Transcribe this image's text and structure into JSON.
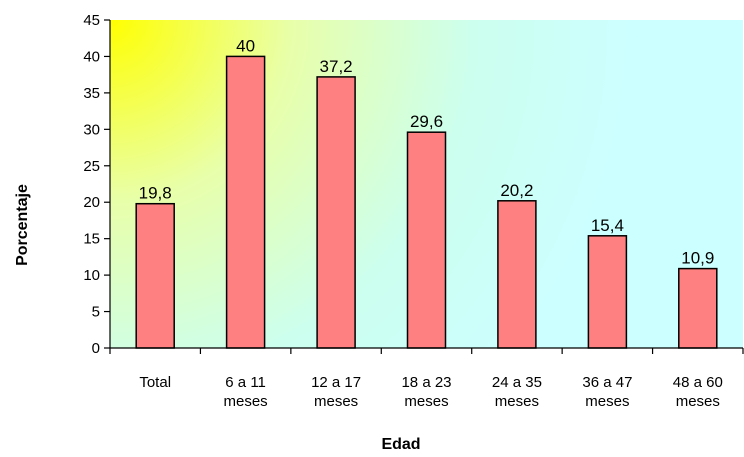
{
  "chart_data": {
    "type": "bar",
    "categories": [
      [
        "Total"
      ],
      [
        "6 a 11",
        "meses"
      ],
      [
        "12 a 17",
        "meses"
      ],
      [
        "18 a 23",
        "meses"
      ],
      [
        "24 a 35",
        "meses"
      ],
      [
        "36 a 47",
        "meses"
      ],
      [
        "48 a 60",
        "meses"
      ]
    ],
    "values": [
      19.8,
      40,
      37.2,
      29.6,
      20.2,
      15.4,
      10.9
    ],
    "data_labels": [
      "19,8",
      "40",
      "37,2",
      "29,6",
      "20,2",
      "15,4",
      "10,9"
    ],
    "xlabel": "Edad",
    "ylabel": "Porcentaje",
    "ylim": [
      0,
      45
    ],
    "yticks": [
      0,
      5,
      10,
      15,
      20,
      25,
      30,
      35,
      40,
      45
    ],
    "grid": false,
    "legend": "none",
    "colors": {
      "bar_fill": "#FF8080",
      "bar_stroke": "#000000",
      "plot_bg_top_left": "#FFFF00",
      "plot_bg_right": "#CCFFFF",
      "plot_bg_bottom": "#CCFFFF"
    }
  }
}
